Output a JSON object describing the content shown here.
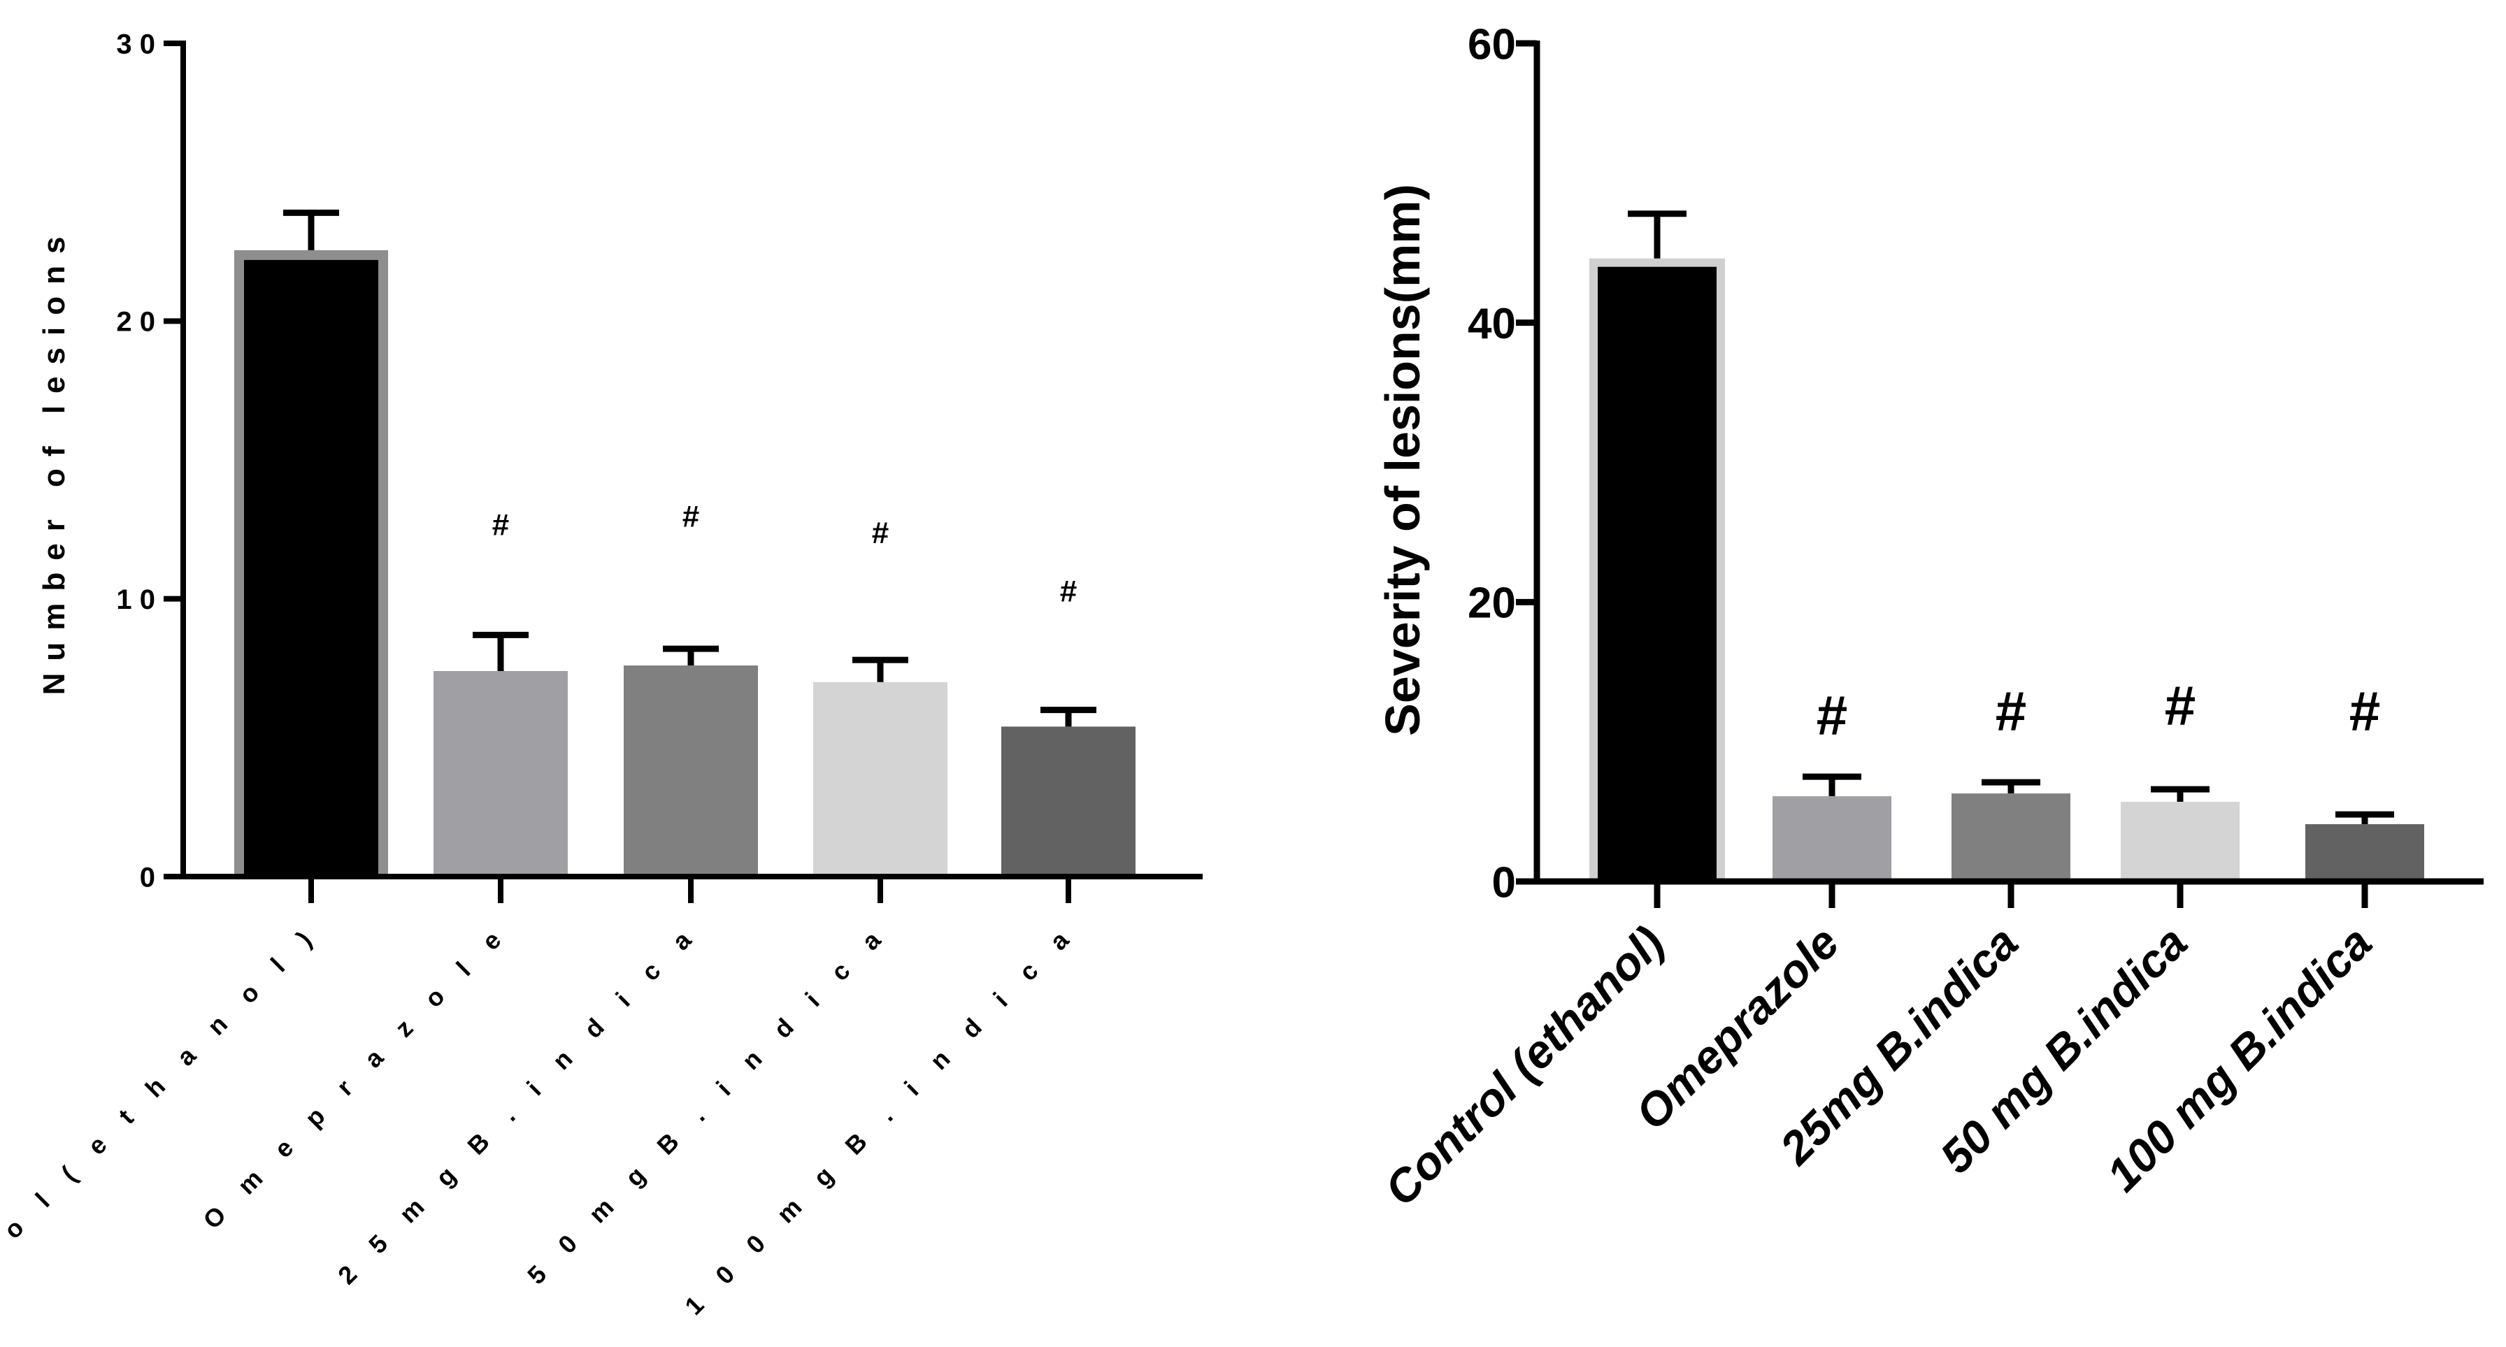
{
  "chart_data": [
    {
      "type": "bar",
      "categories": [
        "Control (ethanol)",
        "Omeprazole",
        "25mg B.indica",
        "50 mg B.indica",
        "100 mg B.indica"
      ],
      "values": [
        22.2,
        7.4,
        7.6,
        7.0,
        5.4
      ],
      "errors": [
        1.7,
        1.3,
        0.6,
        0.8,
        0.6
      ],
      "markers": [
        "",
        "#",
        "#",
        "#",
        "#"
      ],
      "colors": [
        "#000000",
        "#a0a0a4",
        "#808080",
        "#d4d4d4",
        "#626262"
      ],
      "highlight_color": "#8e8e8e",
      "ylabel": "Number of lesions",
      "xlabel": "",
      "ylim": [
        0,
        30
      ],
      "yticks": [
        0,
        10,
        20,
        30
      ],
      "ytick_labels": [
        "0",
        "1 0",
        "2 0",
        "3 0"
      ],
      "category_labels": [
        "C o n t r o l  ( e t h a n o l )",
        "O m e p r a z o l e",
        "2 5 m g   B . i n d i c a",
        "5 0   m g   B . i n d i c a",
        "1 0 0   m g   B . i n d i c a"
      ],
      "markers_y": [
        0,
        12.3,
        12.6,
        12.0,
        9.9
      ]
    },
    {
      "type": "bar",
      "categories": [
        "Control (ethanol)",
        "Omeprazole",
        "25mg B.indica",
        "50 mg B.indica",
        "100 mg B.indica"
      ],
      "values": [
        44,
        6.1,
        6.3,
        5.7,
        4.1
      ],
      "errors": [
        3.8,
        1.4,
        0.8,
        0.9,
        0.7
      ],
      "markers": [
        "",
        "#",
        "#",
        "#",
        "#"
      ],
      "colors": [
        "#000000",
        "#a0a0a4",
        "#808080",
        "#d4d4d4",
        "#626262"
      ],
      "highlight_color": "#d0d0d0",
      "ylabel": "Severity of lesions(mm)",
      "xlabel": "",
      "ylim": [
        0,
        60
      ],
      "yticks": [
        0,
        20,
        40,
        60
      ],
      "ytick_labels": [
        "0",
        "20",
        "40",
        "60"
      ],
      "category_labels": [
        "Control (ethanol)",
        "Omeprazole",
        "25mg B.indica",
        "50 mg B.indica",
        "100 mg B.indica"
      ],
      "markers_y": [
        0,
        10.5,
        10.8,
        11.2,
        10.8
      ]
    }
  ]
}
